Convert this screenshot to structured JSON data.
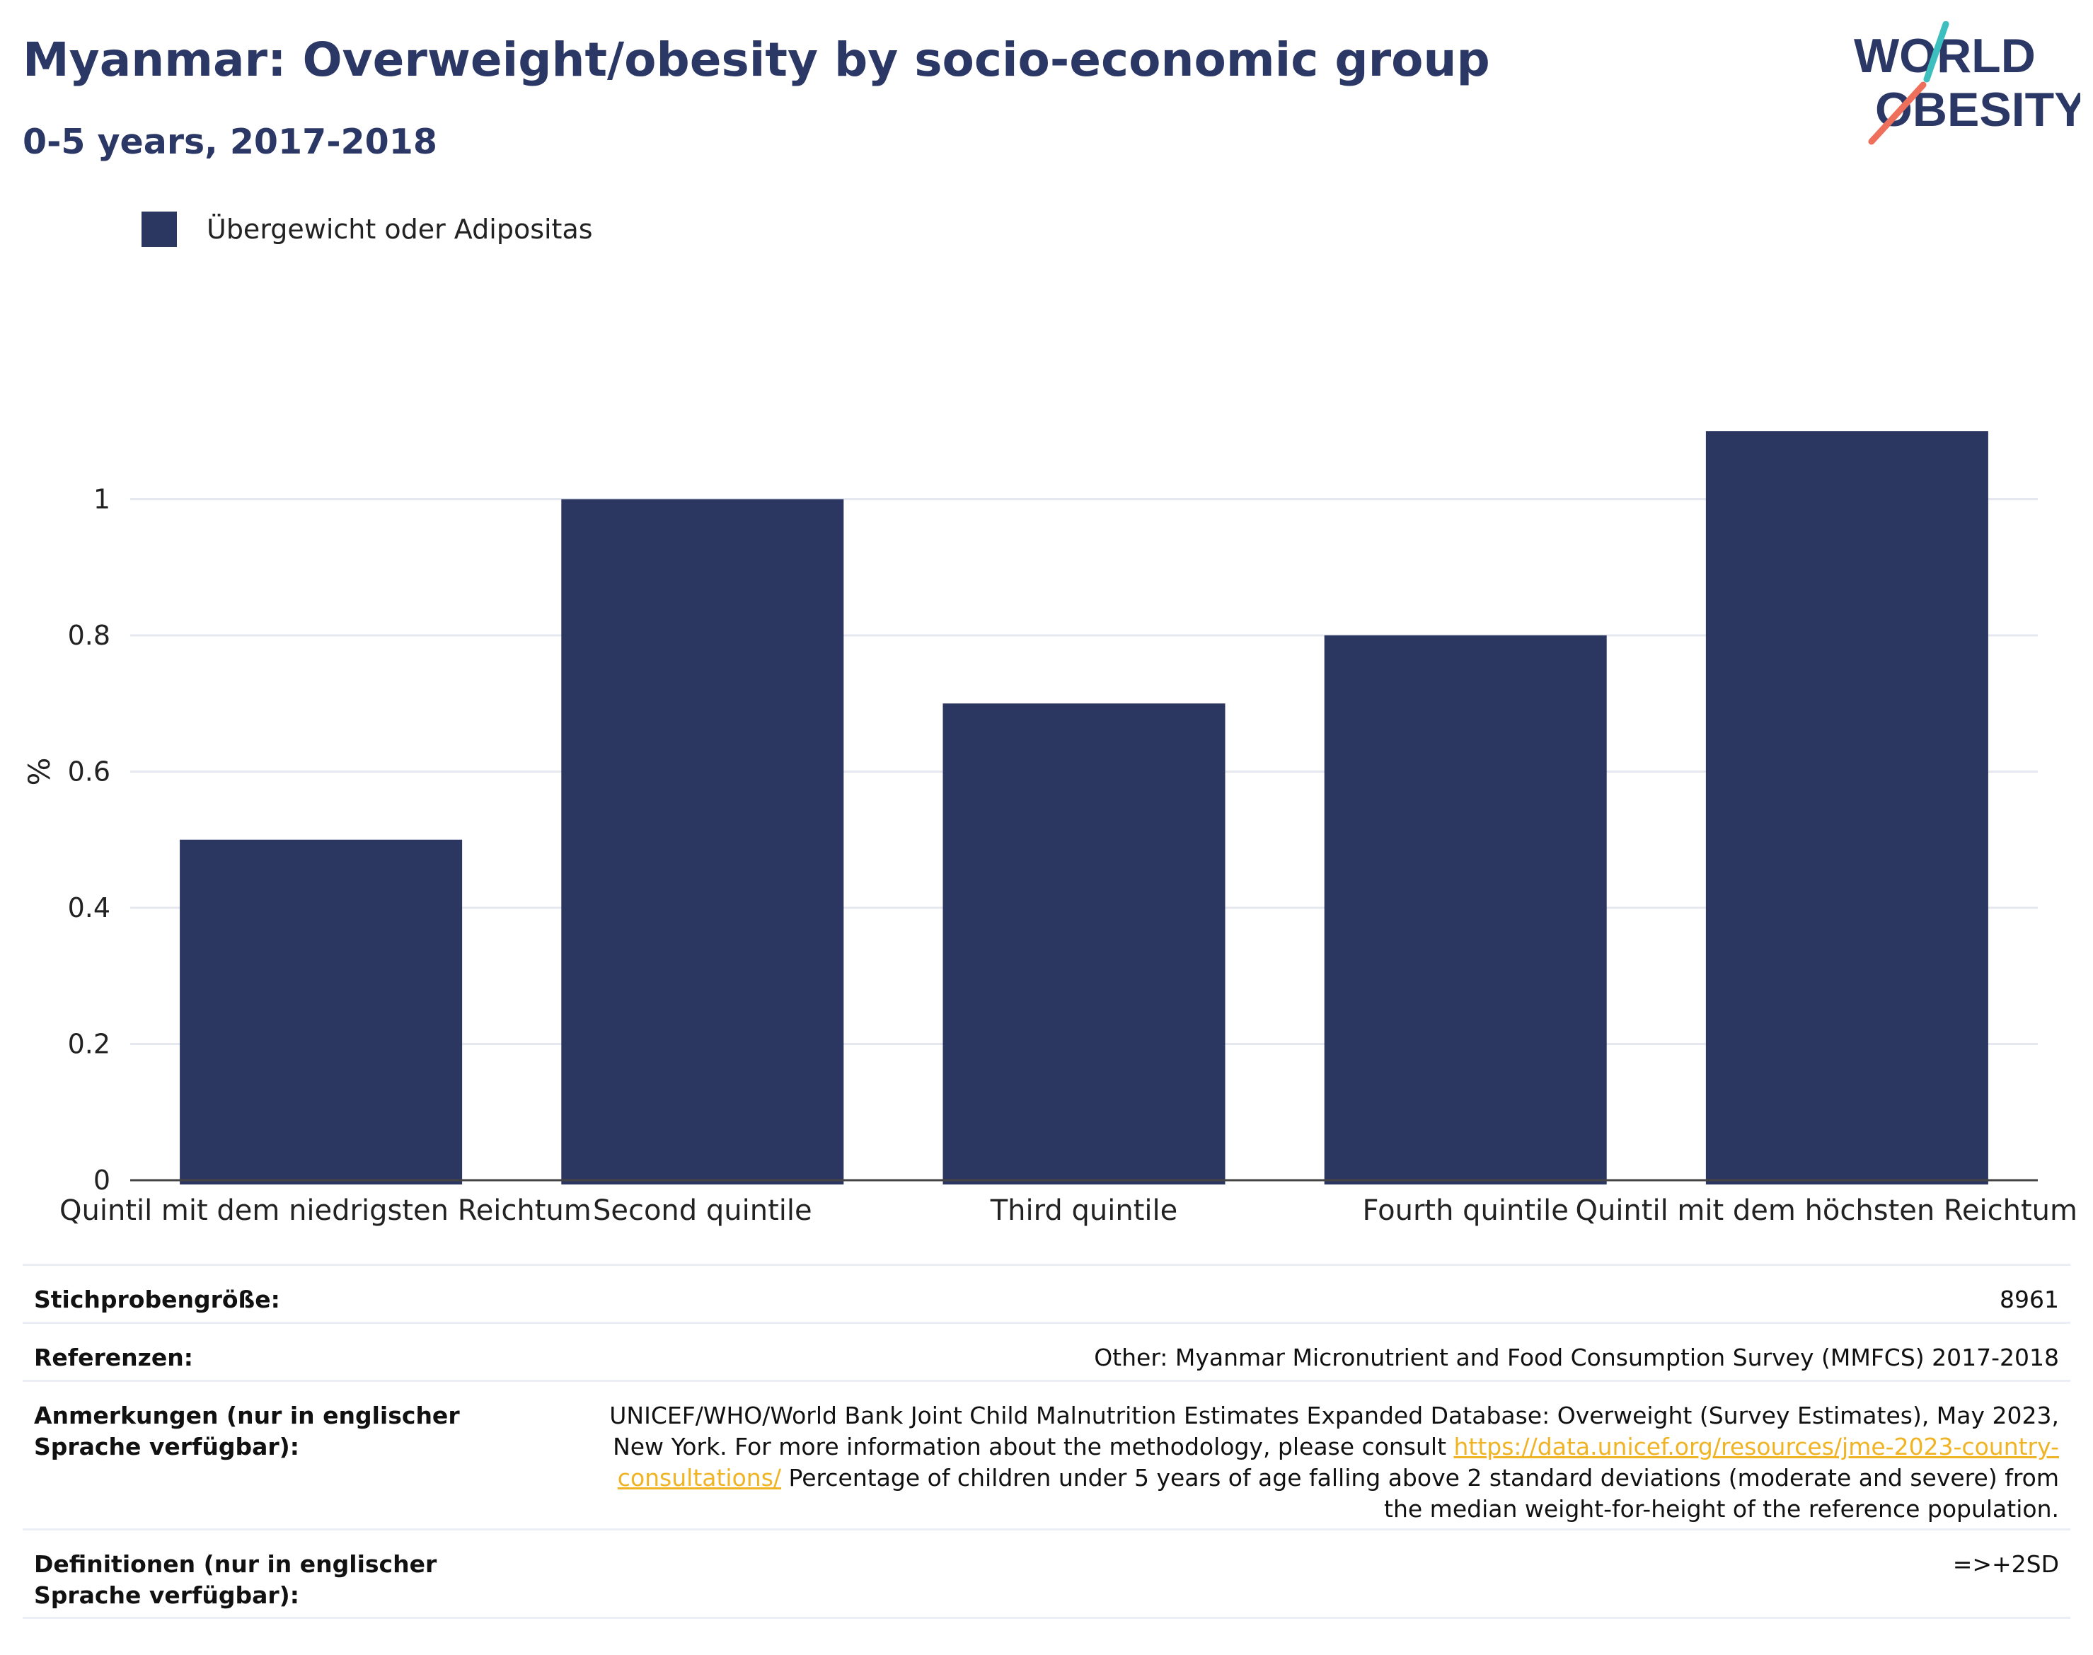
{
  "header": {
    "title": "Myanmar: Overweight/obesity by socio-economic group",
    "subtitle": "0-5 years, 2017-2018"
  },
  "logo": {
    "line1": "WORLD",
    "line2": "OBESITY",
    "text_color": "#2b3866",
    "accent_teal": "#3dbfbf",
    "accent_coral": "#ee6f5b"
  },
  "colors": {
    "bar": "#2b3661",
    "grid": "#e6e8f0",
    "axis": "#444444",
    "title": "#2b3866",
    "link": "#f0b323"
  },
  "chart_data": {
    "type": "bar",
    "categories": [
      "Quintil mit dem niedrigsten Reichtum",
      "Second quintile",
      "Third quintile",
      "Fourth quintile",
      "Quintil mit dem höchsten Reichtum"
    ],
    "series": [
      {
        "name": "Übergewicht oder Adipositas",
        "values": [
          0.5,
          1.0,
          0.7,
          0.8,
          1.1
        ]
      }
    ],
    "ylabel": "%",
    "yticks": [
      0,
      0.2,
      0.4,
      0.6,
      0.8,
      1
    ],
    "ytick_labels": [
      "0",
      "0.2",
      "0.4",
      "0.6",
      "0.8",
      "1"
    ],
    "ylim": [
      0,
      1.255
    ],
    "grid": true,
    "legend_position": "top-left"
  },
  "info": {
    "sample_label": "Stichprobengröße:",
    "sample_value": "8961",
    "references_label": "Referenzen:",
    "references_value": "Other: Myanmar Micronutrient and Food Consumption Survey (MMFCS) 2017-2018",
    "notes_label": "Anmerkungen (nur in englischer Sprache verfügbar):",
    "notes_text_before": "UNICEF/WHO/World Bank Joint Child Malnutrition Estimates Expanded Database: Overweight (Survey Estimates), May 2023, New York. For more information about the methodology, please consult ",
    "notes_link": "https://data.unicef.org/resources/jme-2023-country-consultations/",
    "notes_text_after": " Percentage of children under 5 years of age falling above 2 standard deviations (moderate and severe) from the median weight-for-height of the reference population.",
    "definitions_label": "Definitionen (nur in englischer Sprache verfügbar):",
    "definitions_value": "=>+2SD"
  }
}
